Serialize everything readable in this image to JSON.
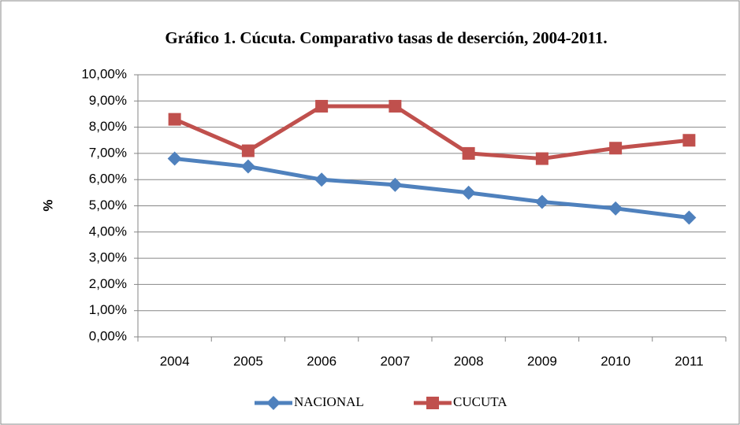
{
  "chart_data": {
    "type": "line",
    "title": "Gráfico 1. Cúcuta. Comparativo tasas de deserción, 2004-2011.",
    "y_label": "%",
    "categories": [
      "2004",
      "2005",
      "2006",
      "2007",
      "2008",
      "2009",
      "2010",
      "2011"
    ],
    "series": [
      {
        "name": "NACIONAL",
        "color": "#4f81bd",
        "marker": "diamond",
        "values": [
          6.8,
          6.5,
          6.0,
          5.8,
          5.5,
          5.15,
          4.9,
          4.55
        ]
      },
      {
        "name": "CUCUTA",
        "color": "#c0504d",
        "marker": "square",
        "values": [
          8.3,
          7.1,
          8.8,
          8.8,
          7.0,
          6.8,
          7.2,
          7.5
        ]
      }
    ],
    "ylim": [
      0,
      10
    ],
    "yticks": [
      {
        "value": 0,
        "label": "0,00%"
      },
      {
        "value": 1,
        "label": "1,00%"
      },
      {
        "value": 2,
        "label": "2,00%"
      },
      {
        "value": 3,
        "label": "3,00%"
      },
      {
        "value": 4,
        "label": "4,00%"
      },
      {
        "value": 5,
        "label": "5,00%"
      },
      {
        "value": 6,
        "label": "6,00%"
      },
      {
        "value": 7,
        "label": "7,00%"
      },
      {
        "value": 8,
        "label": "8,00%"
      },
      {
        "value": 9,
        "label": "9,00%"
      },
      {
        "value": 10,
        "label": "10,00%"
      }
    ],
    "grid": true,
    "legend": "bottom"
  }
}
